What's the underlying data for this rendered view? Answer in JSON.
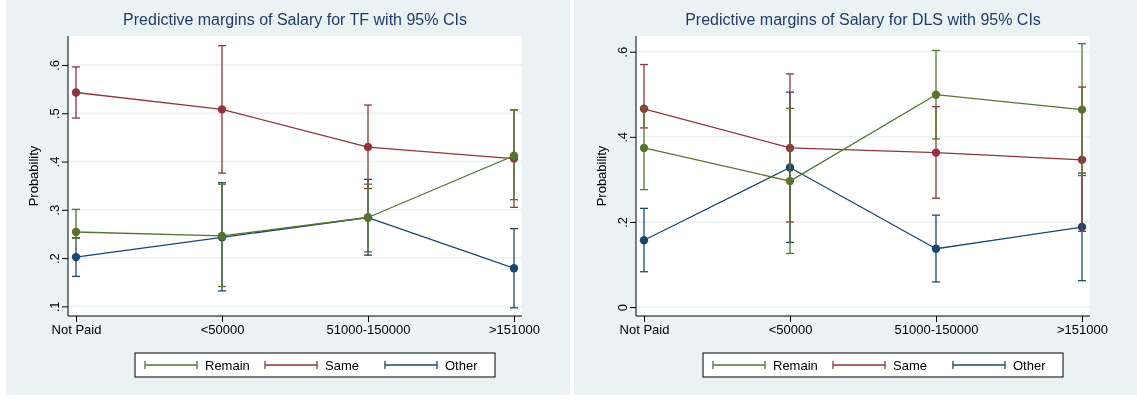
{
  "chart_data": [
    {
      "type": "line",
      "title": "Predictive margins of Salary for TF with 95% CIs",
      "ylabel": "Probability",
      "categories": [
        "Not Paid",
        "<50000",
        "51000-150000",
        ">151000"
      ],
      "ylim": [
        0.08,
        0.66
      ],
      "yticks": [
        {
          "value": 0.1,
          "label": ".1"
        },
        {
          "value": 0.2,
          "label": ".2"
        },
        {
          "value": 0.3,
          "label": ".3"
        },
        {
          "value": 0.4,
          "label": ".4"
        },
        {
          "value": 0.5,
          "label": ".5"
        },
        {
          "value": 0.6,
          "label": ".6"
        }
      ],
      "grid": "y",
      "legend": "bottom",
      "marker": "circle",
      "series": [
        {
          "name": "Remain",
          "color": "#55752f",
          "values": [
            0.254,
            0.246,
            0.284,
            0.412
          ],
          "errors": [
            [
              0.241,
              0.301
            ],
            [
              0.141,
              0.353
            ],
            [
              0.213,
              0.353
            ],
            [
              0.321,
              0.507
            ]
          ]
        },
        {
          "name": "Same",
          "color": "#90353b",
          "values": [
            0.543,
            0.508,
            0.43,
            0.406
          ],
          "errors": [
            [
              0.49,
              0.596
            ],
            [
              0.376,
              0.64
            ],
            [
              0.344,
              0.517
            ],
            [
              0.305,
              0.507
            ]
          ]
        },
        {
          "name": "Other",
          "color": "#1a476f",
          "values": [
            0.202,
            0.243,
            0.284,
            0.179
          ],
          "errors": [
            [
              0.162,
              0.242
            ],
            [
              0.132,
              0.356
            ],
            [
              0.206,
              0.363
            ],
            [
              0.097,
              0.261
            ]
          ]
        }
      ]
    },
    {
      "type": "line",
      "title": "Predictive margins of Salary for DLS with 95% CIs",
      "ylabel": "Probability",
      "categories": [
        "Not Paid",
        "<50000",
        "51000-150000",
        ">151000"
      ],
      "ylim": [
        -0.021,
        0.637
      ],
      "yticks": [
        {
          "value": 0,
          "label": "0"
        },
        {
          "value": 0.2,
          "label": ".2"
        },
        {
          "value": 0.4,
          "label": ".4"
        },
        {
          "value": 0.6,
          "label": ".6"
        }
      ],
      "grid": "y",
      "legend": "bottom",
      "marker": "circle",
      "series": [
        {
          "name": "Remain",
          "color": "#55752f",
          "values": [
            0.374,
            0.296,
            0.499,
            0.464
          ],
          "errors": [
            [
              0.276,
              0.47
            ],
            [
              0.126,
              0.467
            ],
            [
              0.395,
              0.603
            ],
            [
              0.309,
              0.619
            ]
          ]
        },
        {
          "name": "Same",
          "color": "#90353b",
          "values": [
            0.466,
            0.374,
            0.363,
            0.346
          ],
          "errors": [
            [
              0.421,
              0.57
            ],
            [
              0.2,
              0.548
            ],
            [
              0.256,
              0.471
            ],
            [
              0.178,
              0.517
            ]
          ]
        },
        {
          "name": "Other",
          "color": "#1a476f",
          "values": [
            0.157,
            0.328,
            0.137,
            0.188
          ],
          "errors": [
            [
              0.083,
              0.232
            ],
            [
              0.152,
              0.505
            ],
            [
              0.059,
              0.216
            ],
            [
              0.062,
              0.315
            ]
          ]
        }
      ]
    }
  ]
}
